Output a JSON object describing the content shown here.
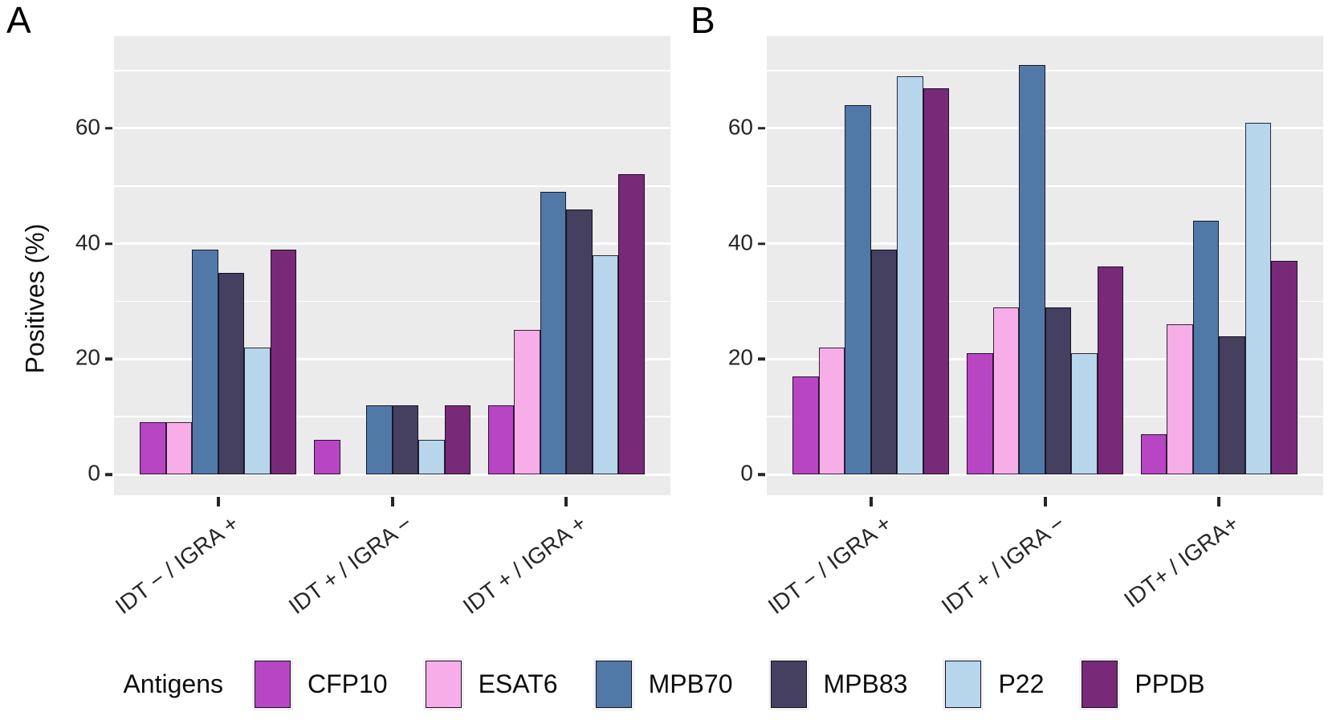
{
  "chart_data": [
    {
      "panel": "A",
      "type": "bar",
      "title": "",
      "ylabel": "Positives (%)",
      "xlabel": "",
      "ylim": [
        0,
        76
      ],
      "yticks": [
        0,
        20,
        40,
        60
      ],
      "yticks_minor": [
        10,
        30,
        50,
        70
      ],
      "grid": "on",
      "legend_position": "bottom-shared",
      "categories": [
        "IDT − / IGRA +",
        "IDT + / IGRA −",
        "IDT + / IGRA +"
      ],
      "series": [
        {
          "name": "CFP10",
          "values": [
            9,
            6,
            12
          ]
        },
        {
          "name": "ESAT6",
          "values": [
            9,
            0,
            25
          ]
        },
        {
          "name": "MPB70",
          "values": [
            39,
            12,
            49
          ]
        },
        {
          "name": "MPB83",
          "values": [
            35,
            12,
            46
          ]
        },
        {
          "name": "P22",
          "values": [
            22,
            6,
            38
          ]
        },
        {
          "name": "PPDB",
          "values": [
            39,
            12,
            52
          ]
        }
      ]
    },
    {
      "panel": "B",
      "type": "bar",
      "title": "",
      "ylabel": "",
      "xlabel": "",
      "ylim": [
        0,
        76
      ],
      "yticks": [
        0,
        20,
        40,
        60
      ],
      "yticks_minor": [
        10,
        30,
        50,
        70
      ],
      "grid": "on",
      "legend_position": "bottom-shared",
      "categories": [
        "IDT − / IGRA +",
        "IDT + / IGRA −",
        "IDT+ / IGRA+"
      ],
      "series": [
        {
          "name": "CFP10",
          "values": [
            17,
            21,
            7
          ]
        },
        {
          "name": "ESAT6",
          "values": [
            22,
            29,
            26
          ]
        },
        {
          "name": "MPB70",
          "values": [
            64,
            71,
            44
          ]
        },
        {
          "name": "MPB83",
          "values": [
            39,
            29,
            24
          ]
        },
        {
          "name": "P22",
          "values": [
            69,
            21,
            61
          ]
        },
        {
          "name": "PPDB",
          "values": [
            67,
            36,
            37
          ]
        }
      ]
    }
  ],
  "legend": {
    "title": "Antigens",
    "items": [
      {
        "label": "CFP10",
        "color": "#B845C3"
      },
      {
        "label": "ESAT6",
        "color": "#F7AEE8"
      },
      {
        "label": "MPB70",
        "color": "#5079A7"
      },
      {
        "label": "MPB83",
        "color": "#454060"
      },
      {
        "label": "P22",
        "color": "#B7D6EC"
      },
      {
        "label": "PPDB",
        "color": "#782A78"
      }
    ]
  },
  "colors": {
    "panel_background": "#EBEBEB",
    "gridline": "#FFFFFF",
    "tick_text": "#262626",
    "bar_outline": "#14081A"
  }
}
